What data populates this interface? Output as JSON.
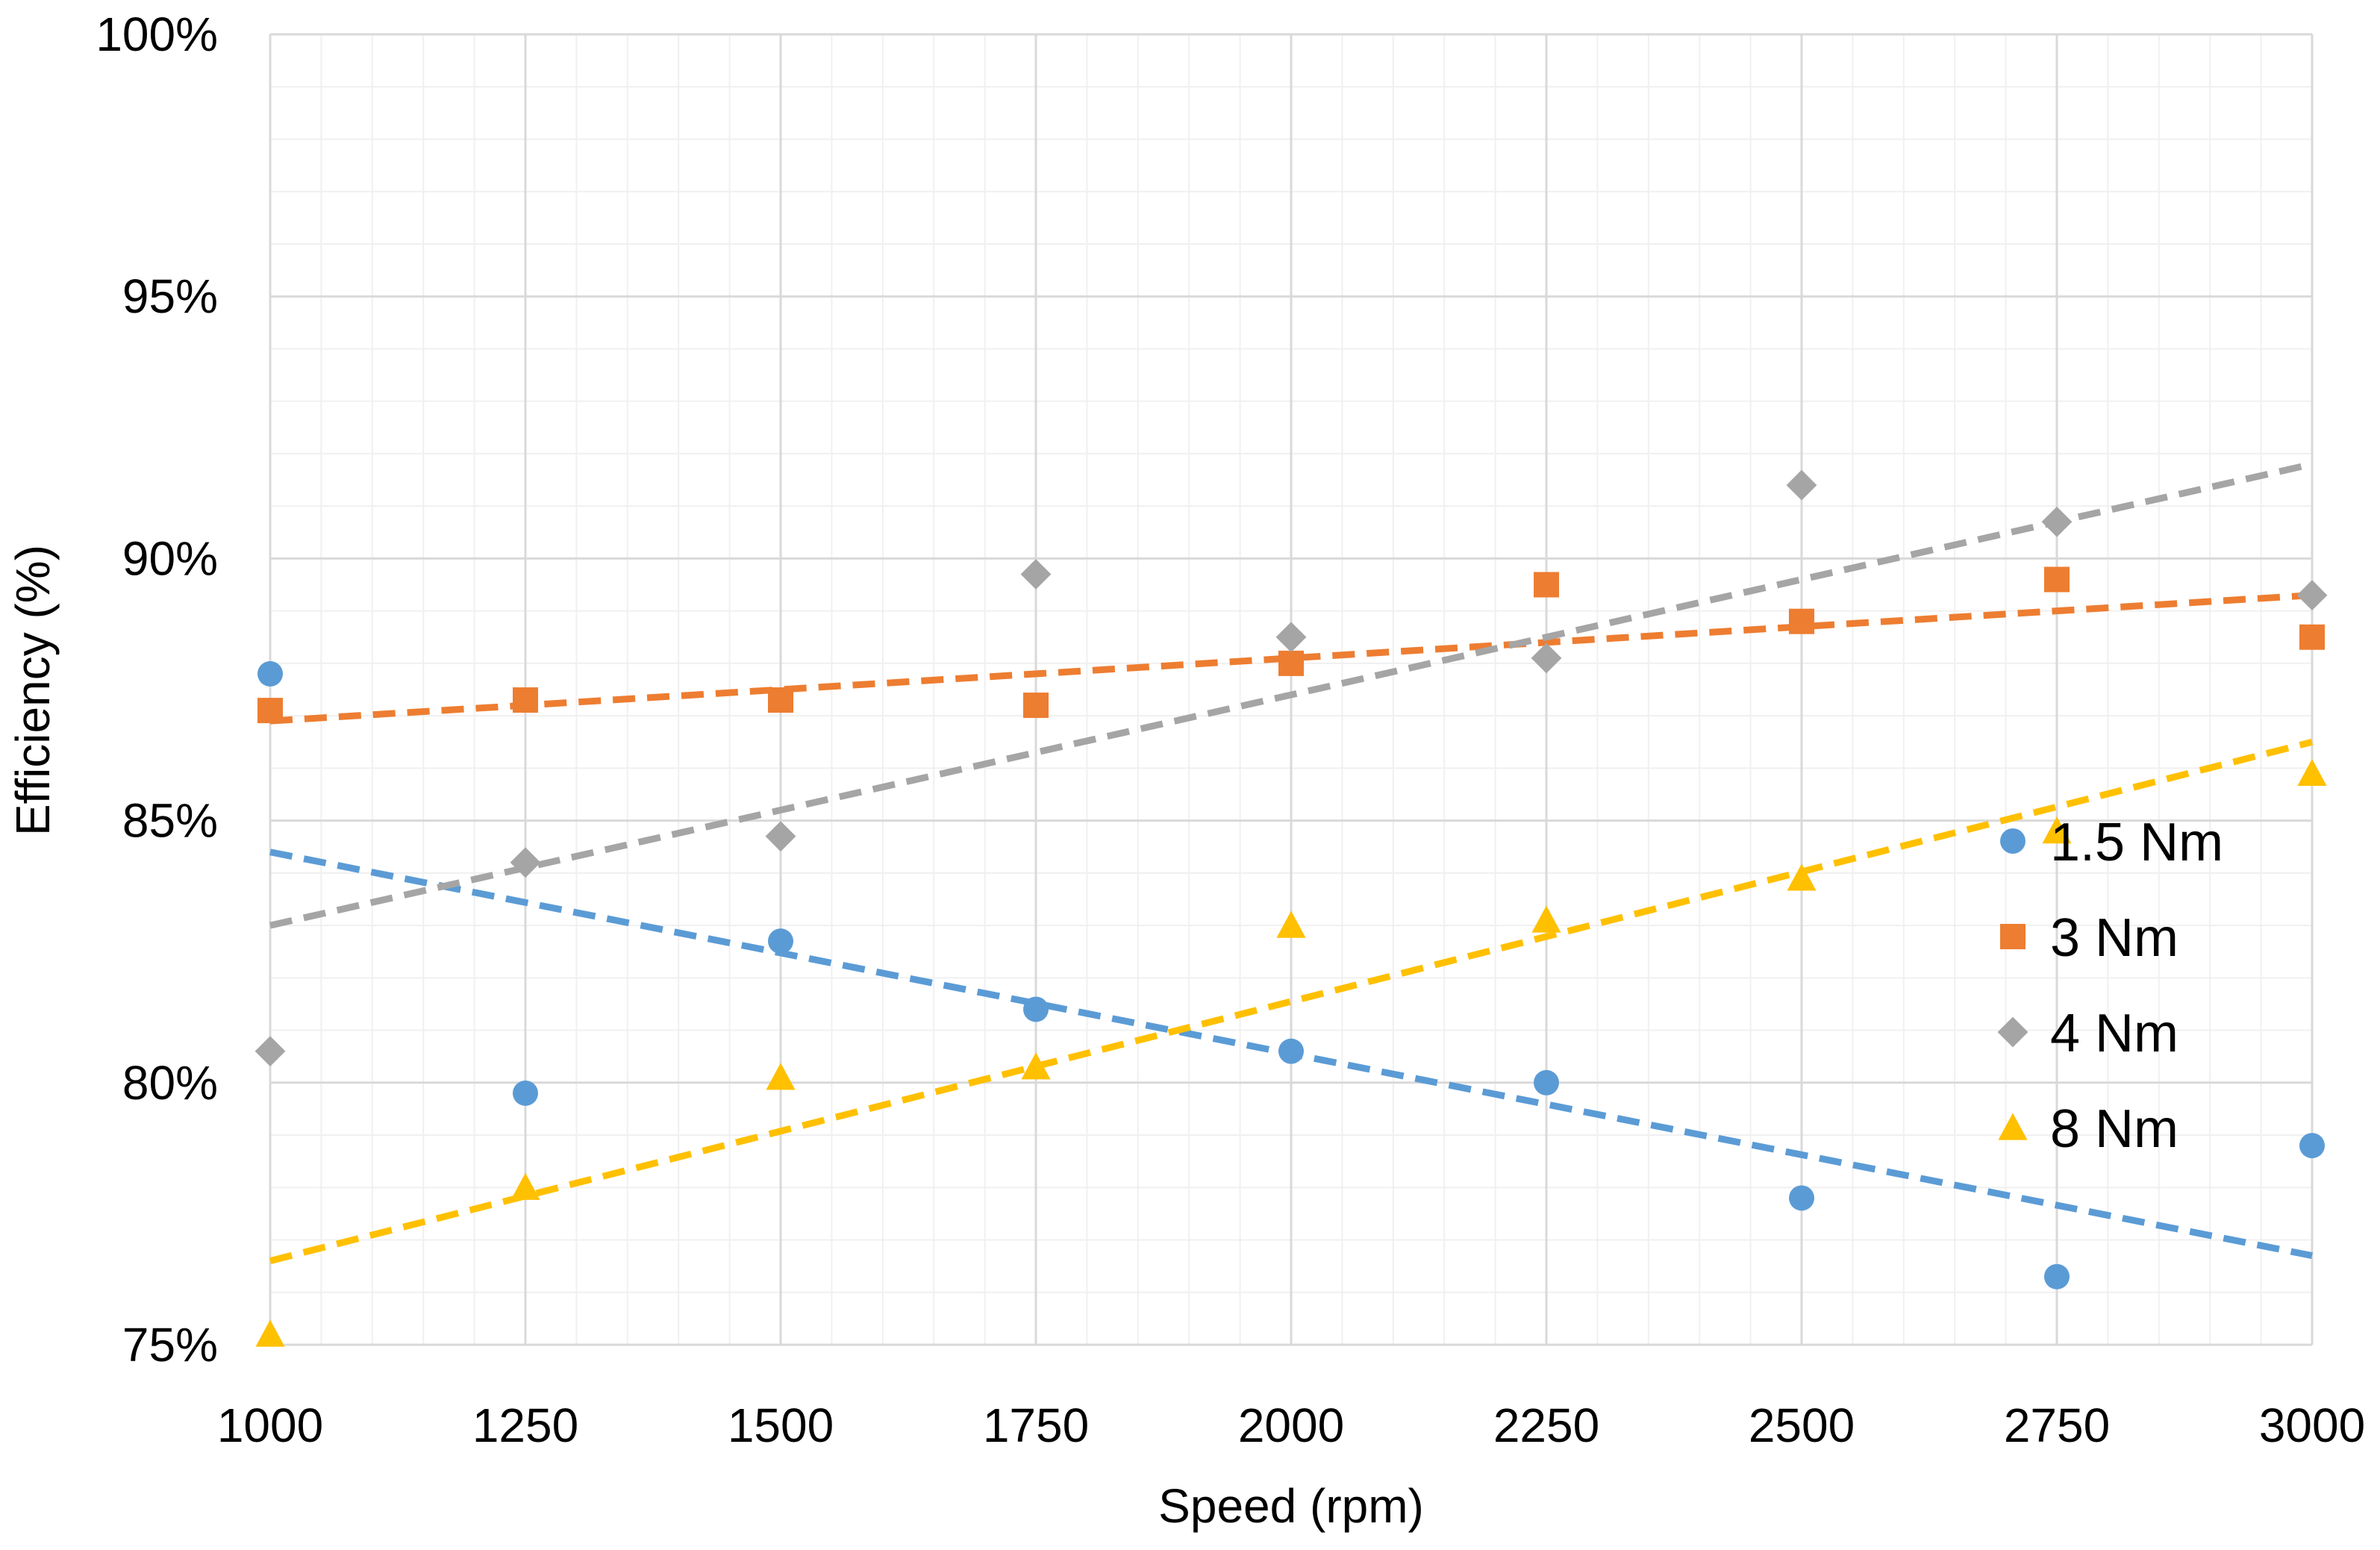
{
  "chart_data": {
    "type": "scatter",
    "title": "",
    "xlabel": "Speed (rpm)",
    "ylabel": "Efficiency (%)",
    "xlim": [
      1000,
      3000
    ],
    "ylim": [
      75,
      100
    ],
    "x_ticks": [
      1000,
      1250,
      1500,
      1750,
      2000,
      2250,
      2500,
      2750,
      3000
    ],
    "x_tick_labels": [
      "1000",
      "1250",
      "1500",
      "1750",
      "2000",
      "2250",
      "2500",
      "2750",
      "3000"
    ],
    "y_ticks": [
      75,
      80,
      85,
      90,
      95,
      100
    ],
    "y_tick_labels": [
      "75%",
      "80%",
      "85%",
      "90%",
      "95%",
      "100%"
    ],
    "grid": true,
    "legend_position": "right",
    "series": [
      {
        "name": "1.5 Nm",
        "color": "#5B9BD5",
        "marker": "circle",
        "x": [
          1000,
          1250,
          1500,
          1750,
          2000,
          2250,
          2500,
          2750,
          3000
        ],
        "y": [
          87.8,
          79.8,
          82.7,
          81.4,
          80.6,
          80.0,
          77.8,
          76.3,
          78.8
        ],
        "trendline": {
          "style": "linear-dashed",
          "from": [
            1000,
            84.4
          ],
          "to": [
            3000,
            76.7
          ]
        }
      },
      {
        "name": "3 Nm",
        "color": "#ED7D31",
        "marker": "square",
        "x": [
          1000,
          1250,
          1500,
          1750,
          2000,
          2250,
          2500,
          2750,
          3000
        ],
        "y": [
          87.1,
          87.3,
          87.3,
          87.2,
          88.0,
          89.5,
          88.8,
          89.6,
          88.5
        ],
        "trendline": {
          "style": "linear-dashed",
          "from": [
            1000,
            86.9
          ],
          "to": [
            3000,
            89.3
          ]
        }
      },
      {
        "name": "4 Nm",
        "color": "#A5A5A5",
        "marker": "diamond",
        "x": [
          1000,
          1250,
          1500,
          1750,
          2000,
          2250,
          2500,
          2750,
          3000
        ],
        "y": [
          80.6,
          84.2,
          84.7,
          89.7,
          88.5,
          88.1,
          91.4,
          90.7,
          89.3
        ],
        "trendline": {
          "style": "linear-dashed",
          "from": [
            1000,
            83.0
          ],
          "to": [
            3000,
            91.8
          ]
        }
      },
      {
        "name": "8 Nm",
        "color": "#FFC000",
        "marker": "triangle",
        "x": [
          1000,
          1250,
          1500,
          1750,
          2000,
          2250,
          2500,
          2750,
          3000
        ],
        "y": [
          75.2,
          78.0,
          80.1,
          80.3,
          83.0,
          83.1,
          83.9,
          84.8,
          85.9
        ],
        "trendline": {
          "style": "linear-dashed",
          "from": [
            1000,
            76.6
          ],
          "to": [
            3000,
            86.5
          ]
        }
      }
    ]
  }
}
